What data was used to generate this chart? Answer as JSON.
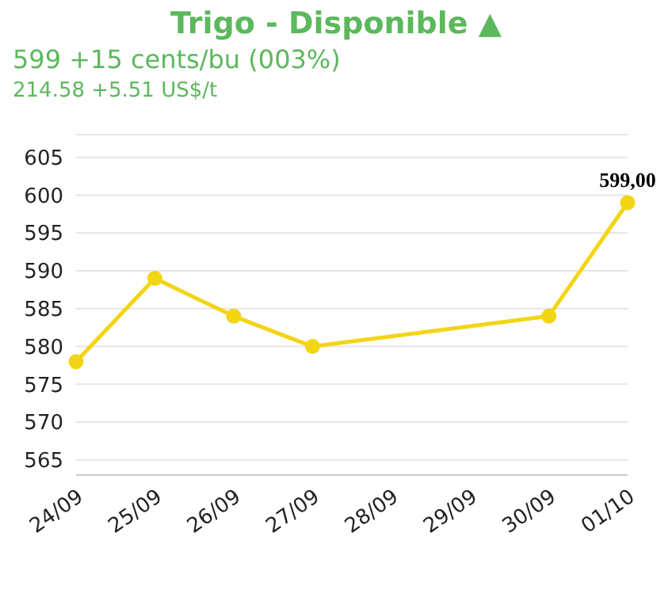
{
  "chart_data": {
    "type": "line",
    "title": "Trigo - Disponible ▲",
    "subtitle": "599 +15 cents/bu (003%)",
    "annotations": [
      "214.58 +5.51 US$/t"
    ],
    "categories": [
      "24/09",
      "25/09",
      "26/09",
      "27/09",
      "28/09",
      "29/09",
      "30/09",
      "01/10"
    ],
    "series": [
      {
        "color": "#f2d515",
        "values": [
          578,
          589,
          584,
          580,
          null,
          null,
          584,
          599
        ],
        "value_labels": [
          null,
          null,
          null,
          null,
          null,
          null,
          null,
          "599,00"
        ]
      }
    ],
    "ylim": [
      563,
      608
    ],
    "yticks": [
      565,
      570,
      575,
      580,
      585,
      590,
      595,
      600,
      605
    ],
    "grid": "y",
    "marker": "circle",
    "line_style": "solid",
    "legend": false
  }
}
